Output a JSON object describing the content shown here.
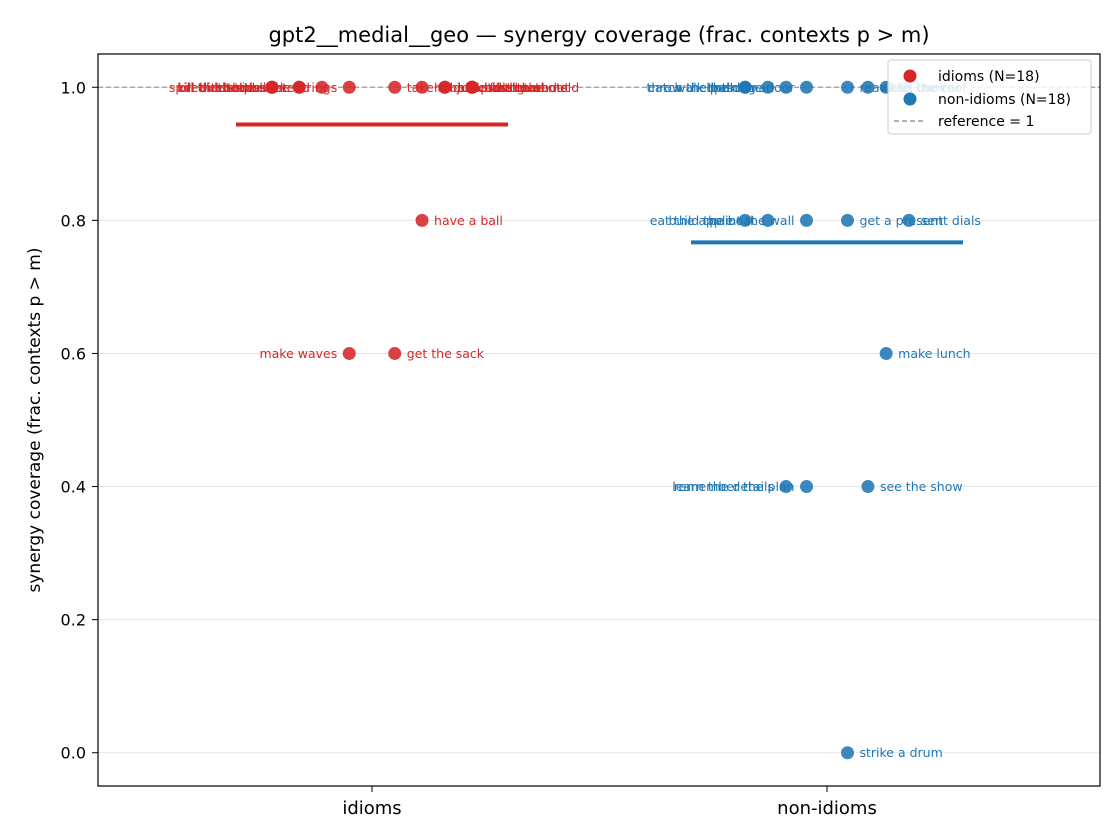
{
  "chart_data": {
    "type": "scatter",
    "title": "gpt2__medial__geo — synergy coverage  (frac. contexts p > m)",
    "ylabel": "synergy coverage  (frac. contexts p > m)",
    "categories": [
      "idioms",
      "non-idioms"
    ],
    "ylim": [
      -0.05,
      1.05
    ],
    "yticks": [
      0.0,
      0.2,
      0.4,
      0.6,
      0.8,
      1.0
    ],
    "ytick_labels": [
      "0.0",
      "0.2",
      "0.4",
      "0.6",
      "0.8",
      "1.0"
    ],
    "grid": "horizontal",
    "legend_position": "top-right",
    "reference": {
      "value": 1.0,
      "label": "reference = 1"
    },
    "series": [
      {
        "name": "idioms (N=18)",
        "category": "idioms",
        "color": "#d62728",
        "mean": 0.944,
        "points": [
          {
            "label": "spill the beans",
            "offset": -0.22,
            "y": 1.0
          },
          {
            "label": "kill the bottle",
            "offset": -0.22,
            "y": 1.0
          },
          {
            "label": "break the ice",
            "offset": -0.22,
            "y": 1.0
          },
          {
            "label": "hit the sack",
            "offset": -0.16,
            "y": 1.0
          },
          {
            "label": "bite the bullet",
            "offset": -0.16,
            "y": 1.0
          },
          {
            "label": "lose the thread",
            "offset": -0.11,
            "y": 1.0
          },
          {
            "label": "pull the strings",
            "offset": -0.05,
            "y": 1.0
          },
          {
            "label": "make waves",
            "offset": -0.05,
            "y": 0.6
          },
          {
            "label": "take a bow",
            "offset": 0.05,
            "y": 1.0
          },
          {
            "label": "get the sack",
            "offset": 0.05,
            "y": 0.6
          },
          {
            "label": "hold the fort",
            "offset": 0.11,
            "y": 1.0
          },
          {
            "label": "have a ball",
            "offset": 0.11,
            "y": 0.8
          },
          {
            "label": "jump the gun",
            "offset": 0.16,
            "y": 1.0
          },
          {
            "label": "rock the boat",
            "offset": 0.16,
            "y": 1.0
          },
          {
            "label": "call the shots",
            "offset": 0.22,
            "y": 1.0
          },
          {
            "label": "break the mold",
            "offset": 0.22,
            "y": 1.0
          },
          {
            "label": "miss the boat",
            "offset": 0.22,
            "y": 1.0
          },
          {
            "label": "hit the road",
            "offset": 0.22,
            "y": 1.0
          }
        ]
      },
      {
        "name": "non-idioms (N=18)",
        "category": "non-idioms",
        "color": "#1f77b4",
        "mean": 0.767,
        "points": [
          {
            "label": "throw the ball",
            "offset": -0.18,
            "y": 1.0
          },
          {
            "label": "catch the bus",
            "offset": -0.18,
            "y": 1.0
          },
          {
            "label": "walk the dog",
            "offset": -0.13,
            "y": 1.0
          },
          {
            "label": "help the man",
            "offset": -0.09,
            "y": 1.0
          },
          {
            "label": "open the door",
            "offset": -0.045,
            "y": 1.0
          },
          {
            "label": "eat the apple",
            "offset": -0.18,
            "y": 0.8
          },
          {
            "label": "build the boat",
            "offset": -0.13,
            "y": 0.8
          },
          {
            "label": "paint the wall",
            "offset": -0.045,
            "y": 0.8
          },
          {
            "label": "learn the details",
            "offset": -0.09,
            "y": 0.4
          },
          {
            "label": "remember the plan",
            "offset": -0.045,
            "y": 0.4
          },
          {
            "label": "read the book",
            "offset": 0.045,
            "y": 1.0
          },
          {
            "label": "wash the car",
            "offset": 0.09,
            "y": 1.0
          },
          {
            "label": "fix the roof",
            "offset": 0.13,
            "y": 1.0
          },
          {
            "label": "get a present",
            "offset": 0.045,
            "y": 0.8
          },
          {
            "label": "sent dials",
            "offset": 0.18,
            "y": 0.8
          },
          {
            "label": "make lunch",
            "offset": 0.13,
            "y": 0.6
          },
          {
            "label": "see the show",
            "offset": 0.09,
            "y": 0.4
          },
          {
            "label": "strike a drum",
            "offset": 0.045,
            "y": 0.0
          }
        ]
      }
    ]
  }
}
